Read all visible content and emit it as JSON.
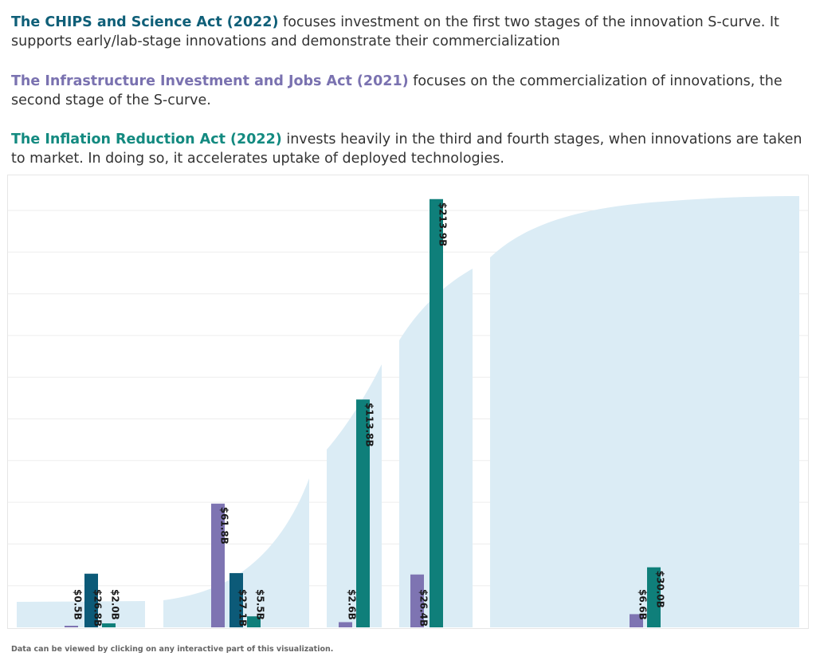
{
  "intro": [
    {
      "act": "The CHIPS and Science Act (2022)",
      "act_color": "#0f5f78",
      "text": " focuses investment on the first two stages of the innovation S-curve. It supports early/lab-stage innovations and demonstrate their commercialization"
    },
    {
      "act": "The Infrastructure Investment and Jobs Act (2021)",
      "act_color": "#7a72b0",
      "text": " focuses on the commercialization of innovations, the second stage of the S-curve."
    },
    {
      "act": "The Inflation Reduction Act (2022)",
      "act_color": "#138a80",
      "text": " invests heavily in the third and fourth stages, when innovations are taken to market. In doing so, it accelerates uptake of deployed technologies."
    }
  ],
  "footer": "Data can be viewed by clicking on any interactive part of this visualization.",
  "colors": {
    "iija": "#7e74b2",
    "chips": "#0c5a78",
    "ira": "#0f7f7a",
    "curve": "#dbecf5",
    "grid": "#ededed"
  },
  "chart_data": {
    "type": "bar",
    "categories": [
      "",
      "",
      "",
      "",
      ""
    ],
    "series": [
      {
        "name": "The Infrastructure Investment and Jobs Act (2021)",
        "color": "#7e74b2",
        "values": [
          0.5,
          61.8,
          2.6,
          26.4,
          6.6
        ],
        "labels": [
          "$0.5B",
          "$61.8B",
          "$2.6B",
          "$26.4B",
          "$6.6B"
        ]
      },
      {
        "name": "The CHIPS and Science Act (2022)",
        "color": "#0c5a78",
        "values": [
          26.8,
          27.1,
          null,
          null,
          null
        ],
        "labels": [
          "$26.8B",
          "$27.1B",
          null,
          null,
          null
        ]
      },
      {
        "name": "The Inflation Reduction Act (2022)",
        "color": "#0f7f7a",
        "values": [
          2.0,
          5.5,
          113.8,
          213.9,
          30.0
        ],
        "labels": [
          "$2.0B",
          "$5.5B",
          "$113.8B",
          "$213.9B",
          "$30.0B"
        ]
      }
    ],
    "ylim": [
      0,
      215
    ],
    "grid": true,
    "background": "innovation S-curve"
  }
}
